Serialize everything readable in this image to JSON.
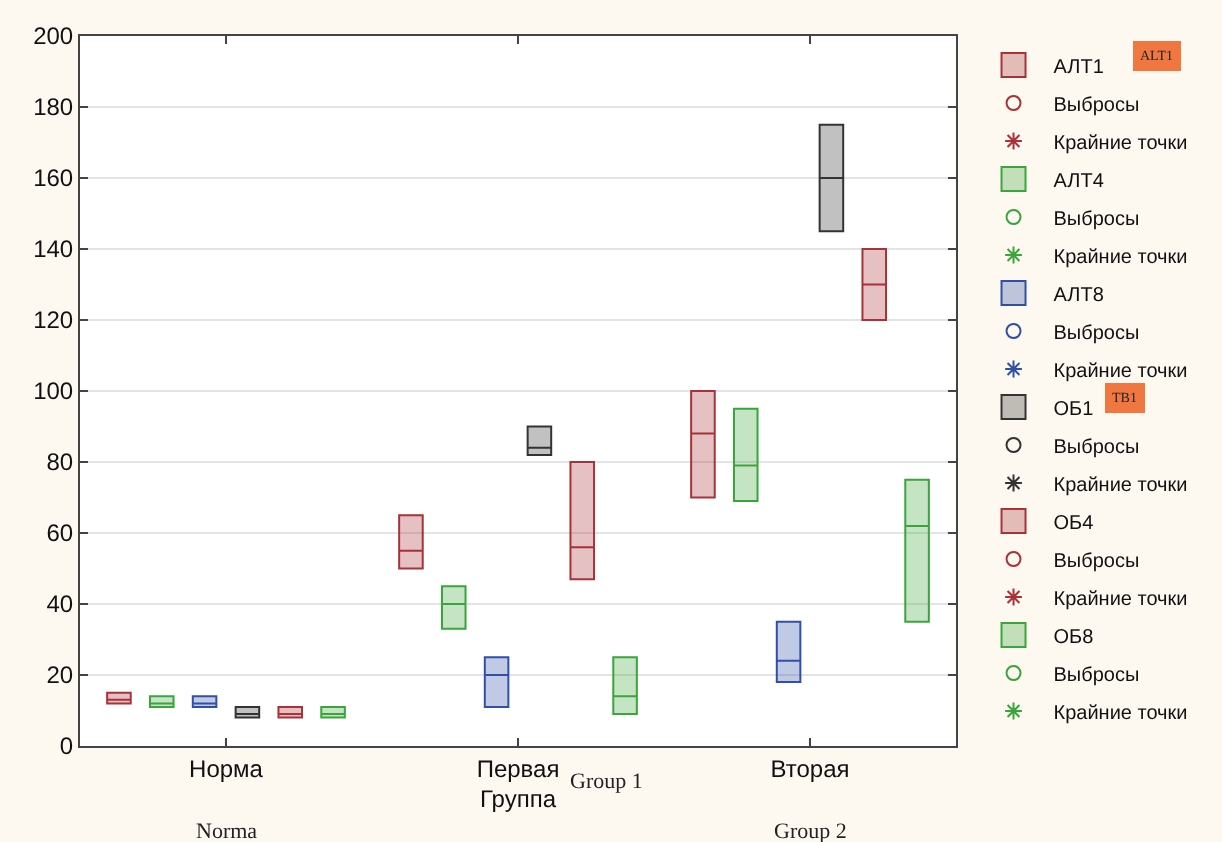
{
  "chart_data": {
    "type": "box",
    "xlabel": "Группа",
    "categories": [
      "Норма",
      "Первая",
      "Вторая"
    ],
    "ylim": [
      0,
      200
    ],
    "yticks": [
      0,
      20,
      40,
      60,
      80,
      100,
      120,
      140,
      160,
      180,
      200
    ],
    "grid": "y",
    "legend": "right",
    "annotations": [
      "Norma",
      "Group 1",
      "Group 2",
      "ALT1",
      "TB1"
    ],
    "series": [
      {
        "name": "АЛТ1",
        "color": "#a83238",
        "boxes": [
          {
            "low": 12,
            "q1": 12,
            "median": 13,
            "q3": 15,
            "high": 15
          },
          {
            "low": 50,
            "q1": 50,
            "median": 55,
            "q3": 65,
            "high": 65
          },
          {
            "low": 70,
            "q1": 70,
            "median": 88,
            "q3": 100,
            "high": 100
          }
        ]
      },
      {
        "type": "scatter",
        "name": "Выбросы",
        "color": "#a83238",
        "marker": "circle",
        "values": [
          null,
          null,
          null
        ]
      },
      {
        "type": "scatter",
        "name": "Крайние точки",
        "color": "#a83238",
        "marker": "star",
        "values": [
          null,
          null,
          null
        ]
      },
      {
        "name": "АЛТ4",
        "color": "#3aa53a",
        "boxes": [
          {
            "low": 11,
            "q1": 11,
            "median": 12,
            "q3": 14,
            "high": 14
          },
          {
            "low": 33,
            "q1": 33,
            "median": 40,
            "q3": 45,
            "high": 45
          },
          {
            "low": 69,
            "q1": 69,
            "median": 79,
            "q3": 95,
            "high": 95
          }
        ]
      },
      {
        "type": "scatter",
        "name": "Выбросы",
        "color": "#3aa53a",
        "marker": "circle",
        "values": [
          null,
          null,
          null
        ]
      },
      {
        "type": "scatter",
        "name": "Крайние точки",
        "color": "#3aa53a",
        "marker": "star",
        "values": [
          null,
          null,
          null
        ]
      },
      {
        "name": "АЛТ8",
        "color": "#3050a8",
        "boxes": [
          {
            "low": 11,
            "q1": 11,
            "median": 12,
            "q3": 14,
            "high": 14
          },
          {
            "low": 11,
            "q1": 11,
            "median": 20,
            "q3": 25,
            "high": 25
          },
          {
            "low": 18,
            "q1": 18,
            "median": 24,
            "q3": 35,
            "high": 35
          }
        ]
      },
      {
        "type": "scatter",
        "name": "Выбросы",
        "color": "#3050a8",
        "marker": "circle",
        "values": [
          null,
          null,
          null
        ]
      },
      {
        "type": "scatter",
        "name": "Крайние точки",
        "color": "#3050a8",
        "marker": "star",
        "values": [
          null,
          null,
          null
        ]
      },
      {
        "name": "ОБ1",
        "color": "#333333",
        "boxes": [
          {
            "low": 8,
            "q1": 8,
            "median": 9,
            "q3": 11,
            "high": 11
          },
          {
            "low": 82,
            "q1": 82,
            "median": 84,
            "q3": 90,
            "high": 90
          },
          {
            "low": 145,
            "q1": 145,
            "median": 160,
            "q3": 175,
            "high": 175
          }
        ]
      },
      {
        "type": "scatter",
        "name": "Выбросы",
        "color": "#333333",
        "marker": "circle",
        "values": [
          null,
          null,
          null
        ]
      },
      {
        "type": "scatter",
        "name": "Крайние точки",
        "color": "#333333",
        "marker": "star",
        "values": [
          null,
          null,
          null
        ]
      },
      {
        "name": "ОБ4",
        "color": "#a83238",
        "boxes": [
          {
            "low": 8,
            "q1": 8,
            "median": 9,
            "q3": 11,
            "high": 11
          },
          {
            "low": 47,
            "q1": 47,
            "median": 56,
            "q3": 80,
            "high": 80
          },
          {
            "low": 120,
            "q1": 120,
            "median": 130,
            "q3": 140,
            "high": 140
          }
        ]
      },
      {
        "type": "scatter",
        "name": "Выбросы",
        "color": "#a83238",
        "marker": "circle",
        "values": [
          null,
          null,
          null
        ]
      },
      {
        "type": "scatter",
        "name": "Крайние точки",
        "color": "#a83238",
        "marker": "star",
        "values": [
          null,
          null,
          null
        ]
      },
      {
        "name": "ОБ8",
        "color": "#3aa53a",
        "boxes": [
          {
            "low": 8,
            "q1": 8,
            "median": 9,
            "q3": 11,
            "high": 11
          },
          {
            "low": 9,
            "q1": 9,
            "median": 14,
            "q3": 25,
            "high": 25
          },
          {
            "low": 35,
            "q1": 35,
            "median": 62,
            "q3": 75,
            "high": 75
          }
        ]
      },
      {
        "type": "scatter",
        "name": "Выбросы",
        "color": "#3aa53a",
        "marker": "circle",
        "values": [
          null,
          null,
          null
        ]
      },
      {
        "type": "scatter",
        "name": "Крайние точки",
        "color": "#3aa53a",
        "marker": "star",
        "values": [
          null,
          null,
          null
        ]
      }
    ]
  }
}
